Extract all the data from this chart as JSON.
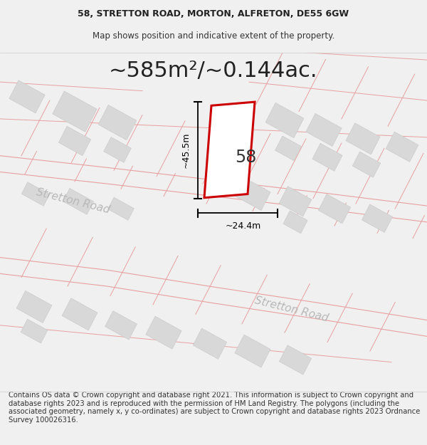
{
  "title_line1": "58, STRETTON ROAD, MORTON, ALFRETON, DE55 6GW",
  "title_line2": "Map shows position and indicative extent of the property.",
  "area_label": "~585m²/~0.144ac.",
  "property_number": "58",
  "dim_vertical": "~45.5m",
  "dim_horizontal": "~24.4m",
  "road_label1": "Stretton Road",
  "road_label2": "Stretton Road",
  "footer": "Contains OS data © Crown copyright and database right 2021. This information is subject to Crown copyright and database rights 2023 and is reproduced with the permission of HM Land Registry. The polygons (including the associated geometry, namely x, y co-ordinates) are subject to Crown copyright and database rights 2023 Ordnance Survey 100026316.",
  "bg_color": "#f0f0f0",
  "map_bg": "#ffffff",
  "road_line_color": "#e8a0a0",
  "building_fill": "#d8d8d8",
  "building_edge": "#cccccc",
  "plot_fill_color": "#e8d8d8",
  "property_fill": "#ffffff",
  "property_edge": "#cc0000",
  "dim_line_color": "#000000",
  "road_text_color": "#b8b8b8",
  "title_fontsize": 9,
  "area_fontsize": 22,
  "footer_fontsize": 7.2
}
